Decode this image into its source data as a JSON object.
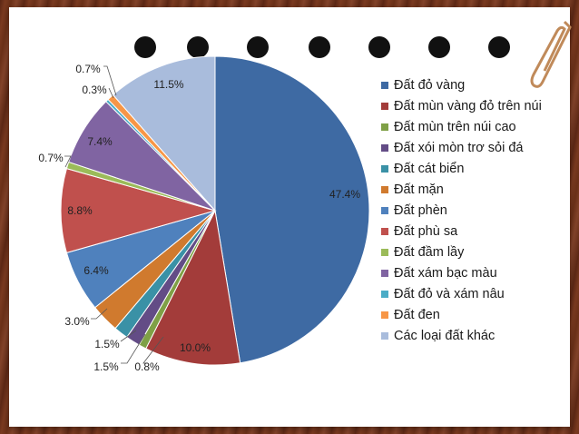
{
  "chart_data": {
    "type": "pie",
    "title": "",
    "series": [
      {
        "label": "Đất đỏ vàng",
        "value": 47.4,
        "display": "47.4%",
        "color": "#3e6aa3"
      },
      {
        "label": "Đất mùn vàng đỏ trên núi",
        "value": 10.0,
        "display": "10.0%",
        "color": "#a33c3a"
      },
      {
        "label": "Đất mùn trên núi cao",
        "value": 0.8,
        "display": "0.8%",
        "color": "#7fa046"
      },
      {
        "label": "Đất xói mòn trơ sỏi đá",
        "value": 1.5,
        "display": "1.5%",
        "color": "#634c86"
      },
      {
        "label": "Đất cát biển",
        "value": 1.5,
        "display": "1.5%",
        "color": "#3a91a6"
      },
      {
        "label": "Đất mặn",
        "value": 3.0,
        "display": "3.0%",
        "color": "#d07a2e"
      },
      {
        "label": "Đất phèn",
        "value": 6.4,
        "display": "6.4%",
        "color": "#4f81bd"
      },
      {
        "label": "Đất phù sa",
        "value": 8.8,
        "display": "8.8%",
        "color": "#c0504d"
      },
      {
        "label": "Đất đầm lầy",
        "value": 0.7,
        "display": "0.7%",
        "color": "#9bbb59"
      },
      {
        "label": "Đất xám bạc màu",
        "value": 7.4,
        "display": "7.4%",
        "color": "#8064a2"
      },
      {
        "label": "Đất đỏ và xám nâu",
        "value": 0.3,
        "display": "0.3%",
        "color": "#4bacc6"
      },
      {
        "label": "Đất đen",
        "value": 0.7,
        "display": "0.7%",
        "color": "#f79646"
      },
      {
        "label": "Các loại đất khác",
        "value": 11.5,
        "display": "11.5%",
        "color": "#a9bcdc"
      }
    ],
    "legend_position": "right",
    "start_angle": "12 o'clock",
    "direction": "clockwise"
  }
}
